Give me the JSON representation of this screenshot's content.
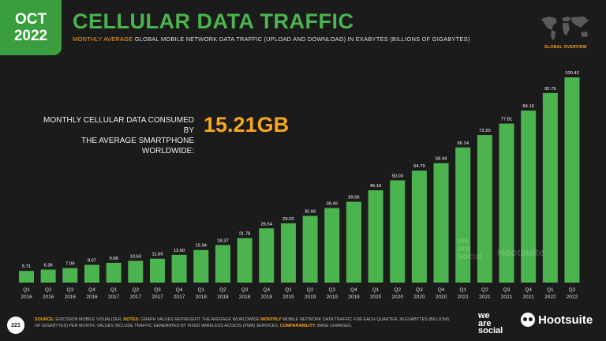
{
  "badge": {
    "month": "OCT",
    "year": "2022"
  },
  "title": "CELLULAR DATA TRAFFIC",
  "subtitle": {
    "highlight": "MONTHLY AVERAGE",
    "rest": " GLOBAL MOBILE NETWORK DATA TRAFFIC (UPLOAD AND DOWNLOAD) IN EXABYTES (BILLIONS OF GIGABYTES)"
  },
  "map_label": "GLOBAL OVERVIEW",
  "callout": {
    "label_line1": "MONTHLY CELLULAR DATA CONSUMED BY",
    "label_line2": "THE AVERAGE SMARTPHONE WORLDWIDE:",
    "value": "15.21GB"
  },
  "page_number": "221",
  "source": {
    "k1": "SOURCE:",
    "t1": " ERICSSON MOBILE VISUALIZER. ",
    "k2": "NOTES:",
    "t2": " GRAPH VALUES REPRESENT THE AVERAGE WORLDWIDE ",
    "k3": "MONTHLY",
    "t3": " MOBILE NETWORK DATA TRAFFIC FOR EACH QUARTER, IN EXABYTES (BILLIONS OF GIGABYTES) PER MONTH. VALUES INCLUDE TRAFFIC GENERATED BY FIXED WIRELESS ACCESS (FWA) SERVICES. ",
    "k4": "COMPARABILITY:",
    "t4": " BASE CHANGES."
  },
  "brands": {
    "we": "we",
    "are": "are",
    "social": "social",
    "hootsuite": "Hootsuite"
  },
  "colors": {
    "bar": "#4cb44f",
    "accent": "#f5a623",
    "background": "#1b1b1b"
  },
  "chart_data": {
    "type": "bar",
    "categories": [
      [
        "Q1",
        "2016"
      ],
      [
        "Q2",
        "2016"
      ],
      [
        "Q3",
        "2016"
      ],
      [
        "Q4",
        "2016"
      ],
      [
        "Q1",
        "2017"
      ],
      [
        "Q2",
        "2017"
      ],
      [
        "Q3",
        "2017"
      ],
      [
        "Q4",
        "2017"
      ],
      [
        "Q1",
        "2018"
      ],
      [
        "Q2",
        "2018"
      ],
      [
        "Q3",
        "2018"
      ],
      [
        "Q4",
        "2018"
      ],
      [
        "Q1",
        "2019"
      ],
      [
        "Q2",
        "2019"
      ],
      [
        "Q3",
        "2019"
      ],
      [
        "Q4",
        "2019"
      ],
      [
        "Q1",
        "2020"
      ],
      [
        "Q2",
        "2020"
      ],
      [
        "Q3",
        "2020"
      ],
      [
        "Q4",
        "2020"
      ],
      [
        "Q1",
        "2021"
      ],
      [
        "Q2",
        "2021"
      ],
      [
        "Q3",
        "2021"
      ],
      [
        "Q4",
        "2021"
      ],
      [
        "Q1",
        "2022"
      ],
      [
        "Q2",
        "2022"
      ]
    ],
    "values": [
      5.71,
      6.36,
      7.09,
      8.67,
      9.68,
      10.63,
      11.69,
      13.6,
      15.94,
      18.37,
      21.78,
      26.54,
      29.02,
      32.66,
      36.49,
      39.56,
      45.16,
      50.03,
      54.79,
      58.44,
      66.14,
      72.2,
      77.81,
      84.16,
      92.75,
      100.42
    ],
    "value_labels": [
      "5.71",
      "6.36",
      "7.09",
      "8.67",
      "9.68",
      "10.63",
      "11.69",
      "13.60",
      "15.94",
      "18.37",
      "21.78",
      "26.54",
      "29.02",
      "32.66",
      "36.49",
      "39.56",
      "45.16",
      "50.03",
      "54.79",
      "58.44",
      "66.14",
      "72.20",
      "77.81",
      "84.16",
      "92.75",
      "100.42"
    ],
    "ylim": [
      0,
      100.42
    ],
    "grid": false,
    "legend": "none"
  }
}
